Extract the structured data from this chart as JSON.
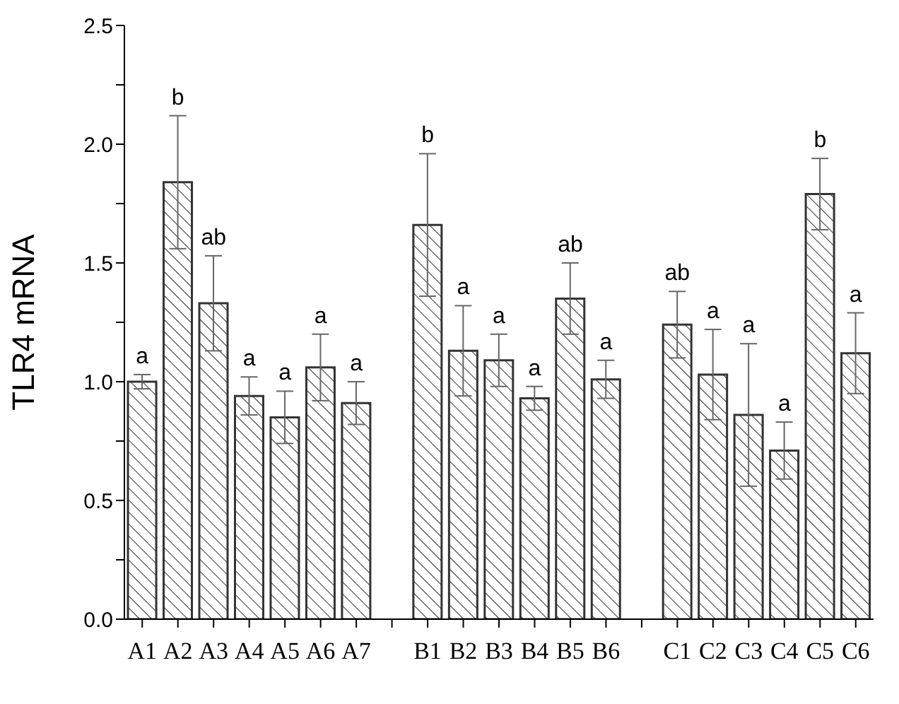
{
  "chart_data": {
    "type": "bar",
    "ylabel": "TLR4 mRNA",
    "categories": [
      "A1",
      "A2",
      "A3",
      "A4",
      "A5",
      "A6",
      "A7",
      null,
      "B1",
      "B2",
      "B3",
      "B4",
      "B5",
      "B6",
      null,
      "C1",
      "C2",
      "C3",
      "C4",
      "C5",
      "C6"
    ],
    "values": [
      1.0,
      1.84,
      1.33,
      0.94,
      0.85,
      1.06,
      0.91,
      null,
      1.66,
      1.13,
      1.09,
      0.93,
      1.35,
      1.01,
      null,
      1.24,
      1.03,
      0.86,
      0.71,
      1.79,
      1.12
    ],
    "errors": [
      0.03,
      0.28,
      0.2,
      0.08,
      0.11,
      0.14,
      0.09,
      null,
      0.3,
      0.19,
      0.11,
      0.05,
      0.15,
      0.08,
      null,
      0.14,
      0.19,
      0.3,
      0.12,
      0.15,
      0.17
    ],
    "color": "#333333",
    "ylim": [
      0,
      2.5
    ],
    "yticks": [
      {
        "value": 0,
        "label": "0.0"
      },
      {
        "value": 0.25,
        "label": null
      },
      0.5,
      {
        "value": 0.75,
        "label": null
      },
      {
        "value": 1,
        "label": "1.0"
      },
      {
        "value": 1.25,
        "label": null
      },
      1.5,
      {
        "value": 1.75,
        "label": null
      },
      {
        "value": 2,
        "label": "2.0"
      },
      {
        "value": 2.25,
        "label": null
      },
      2.5
    ],
    "grid": false,
    "legend": false,
    "annotations": [
      {
        "text": "a",
        "x": "A1",
        "y": 1.03
      },
      {
        "text": "b",
        "x": "A2",
        "y": 2.12
      },
      {
        "text": "ab",
        "x": "A3",
        "y": 1.53
      },
      {
        "text": "a",
        "x": "A4",
        "y": 1.02
      },
      {
        "text": "a",
        "x": "A5",
        "y": 0.96
      },
      {
        "text": "a",
        "x": "A6",
        "y": 1.2
      },
      {
        "text": "a",
        "x": "A7",
        "y": 1.0
      },
      {
        "text": "b",
        "x": "B1",
        "y": 1.96
      },
      {
        "text": "a",
        "x": "B2",
        "y": 1.32
      },
      {
        "text": "a",
        "x": "B3",
        "y": 1.2
      },
      {
        "text": "a",
        "x": "B4",
        "y": 0.98
      },
      {
        "text": "ab",
        "x": "B5",
        "y": 1.5
      },
      {
        "text": "a",
        "x": "B6",
        "y": 1.09
      },
      {
        "text": "ab",
        "x": "C1",
        "y": 1.38
      },
      {
        "text": "a",
        "x": "C2",
        "y": 1.22
      },
      {
        "text": "a",
        "x": "C3",
        "y": 1.16
      },
      {
        "text": "a",
        "x": "C4",
        "y": 0.83
      },
      {
        "text": "b",
        "x": "C5",
        "y": 1.94
      },
      {
        "text": "a",
        "x": "C6",
        "y": 1.29
      }
    ]
  }
}
